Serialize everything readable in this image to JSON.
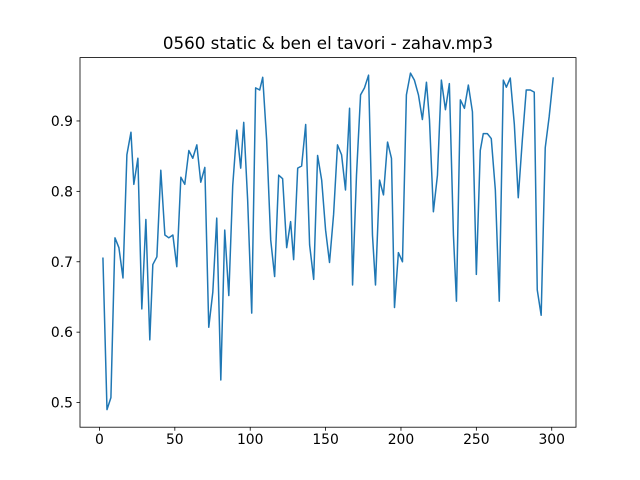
{
  "chart_data": {
    "type": "line",
    "title": "0560 static & ben el tavori - zahav.mp3",
    "x": [
      2.3,
      5.0,
      7.6,
      10.3,
      12.9,
      15.6,
      18.2,
      20.9,
      22.8,
      25.5,
      28.1,
      30.8,
      33.4,
      35.4,
      38.1,
      40.7,
      43.4,
      46.0,
      48.7,
      51.3,
      54.0,
      56.6,
      59.3,
      61.9,
      64.6,
      67.2,
      69.9,
      72.5,
      75.2,
      77.8,
      80.5,
      83.1,
      85.8,
      88.4,
      91.1,
      93.7,
      95.7,
      98.3,
      101.0,
      103.6,
      106.3,
      108.3,
      110.9,
      113.6,
      116.2,
      118.9,
      121.5,
      124.2,
      126.8,
      128.8,
      131.5,
      134.1,
      136.8,
      139.4,
      142.1,
      144.7,
      147.4,
      150.0,
      152.6,
      155.3,
      157.9,
      160.6,
      163.2,
      165.9,
      167.9,
      170.5,
      173.2,
      175.8,
      178.5,
      181.1,
      183.1,
      185.8,
      188.4,
      191.1,
      193.7,
      195.7,
      198.3,
      201.0,
      203.6,
      206.3,
      208.9,
      211.6,
      214.2,
      216.9,
      218.9,
      221.5,
      224.2,
      226.8,
      229.5,
      232.1,
      234.8,
      236.8,
      239.4,
      242.1,
      244.7,
      247.4,
      250.0,
      252.6,
      254.6,
      257.3,
      259.9,
      262.6,
      265.2,
      267.9,
      269.9,
      272.5,
      275.2,
      277.8,
      280.5,
      283.1,
      285.8,
      288.4,
      290.4,
      293.0,
      295.7,
      298.3,
      301.0
    ],
    "series": [
      {
        "color": "#1f77b4",
        "values": [
          0.706,
          0.49,
          0.507,
          0.734,
          0.72,
          0.677,
          0.852,
          0.884,
          0.81,
          0.847,
          0.633,
          0.76,
          0.589,
          0.696,
          0.707,
          0.83,
          0.738,
          0.734,
          0.738,
          0.693,
          0.82,
          0.81,
          0.858,
          0.847,
          0.866,
          0.813,
          0.834,
          0.607,
          0.657,
          0.762,
          0.532,
          0.745,
          0.652,
          0.808,
          0.887,
          0.833,
          0.898,
          0.788,
          0.627,
          0.947,
          0.944,
          0.962,
          0.873,
          0.731,
          0.679,
          0.823,
          0.818,
          0.72,
          0.757,
          0.703,
          0.833,
          0.836,
          0.895,
          0.724,
          0.675,
          0.851,
          0.816,
          0.745,
          0.699,
          0.767,
          0.866,
          0.852,
          0.802,
          0.918,
          0.667,
          0.823,
          0.937,
          0.947,
          0.965,
          0.738,
          0.667,
          0.816,
          0.795,
          0.87,
          0.847,
          0.635,
          0.713,
          0.7,
          0.937,
          0.968,
          0.958,
          0.937,
          0.902,
          0.955,
          0.902,
          0.771,
          0.823,
          0.958,
          0.916,
          0.953,
          0.738,
          0.644,
          0.93,
          0.918,
          0.951,
          0.913,
          0.682,
          0.858,
          0.882,
          0.882,
          0.875,
          0.802,
          0.644,
          0.958,
          0.948,
          0.961,
          0.895,
          0.791,
          0.873,
          0.944,
          0.944,
          0.941,
          0.66,
          0.624,
          0.862,
          0.906,
          0.962
        ]
      }
    ],
    "xlim": [
      -12.9,
      316.1
    ],
    "xticks": [
      0,
      50,
      100,
      150,
      200,
      250,
      300
    ],
    "ylim": [
      0.465,
      0.99
    ],
    "yticks": [
      0.5,
      0.6,
      0.7,
      0.8,
      0.9
    ]
  }
}
